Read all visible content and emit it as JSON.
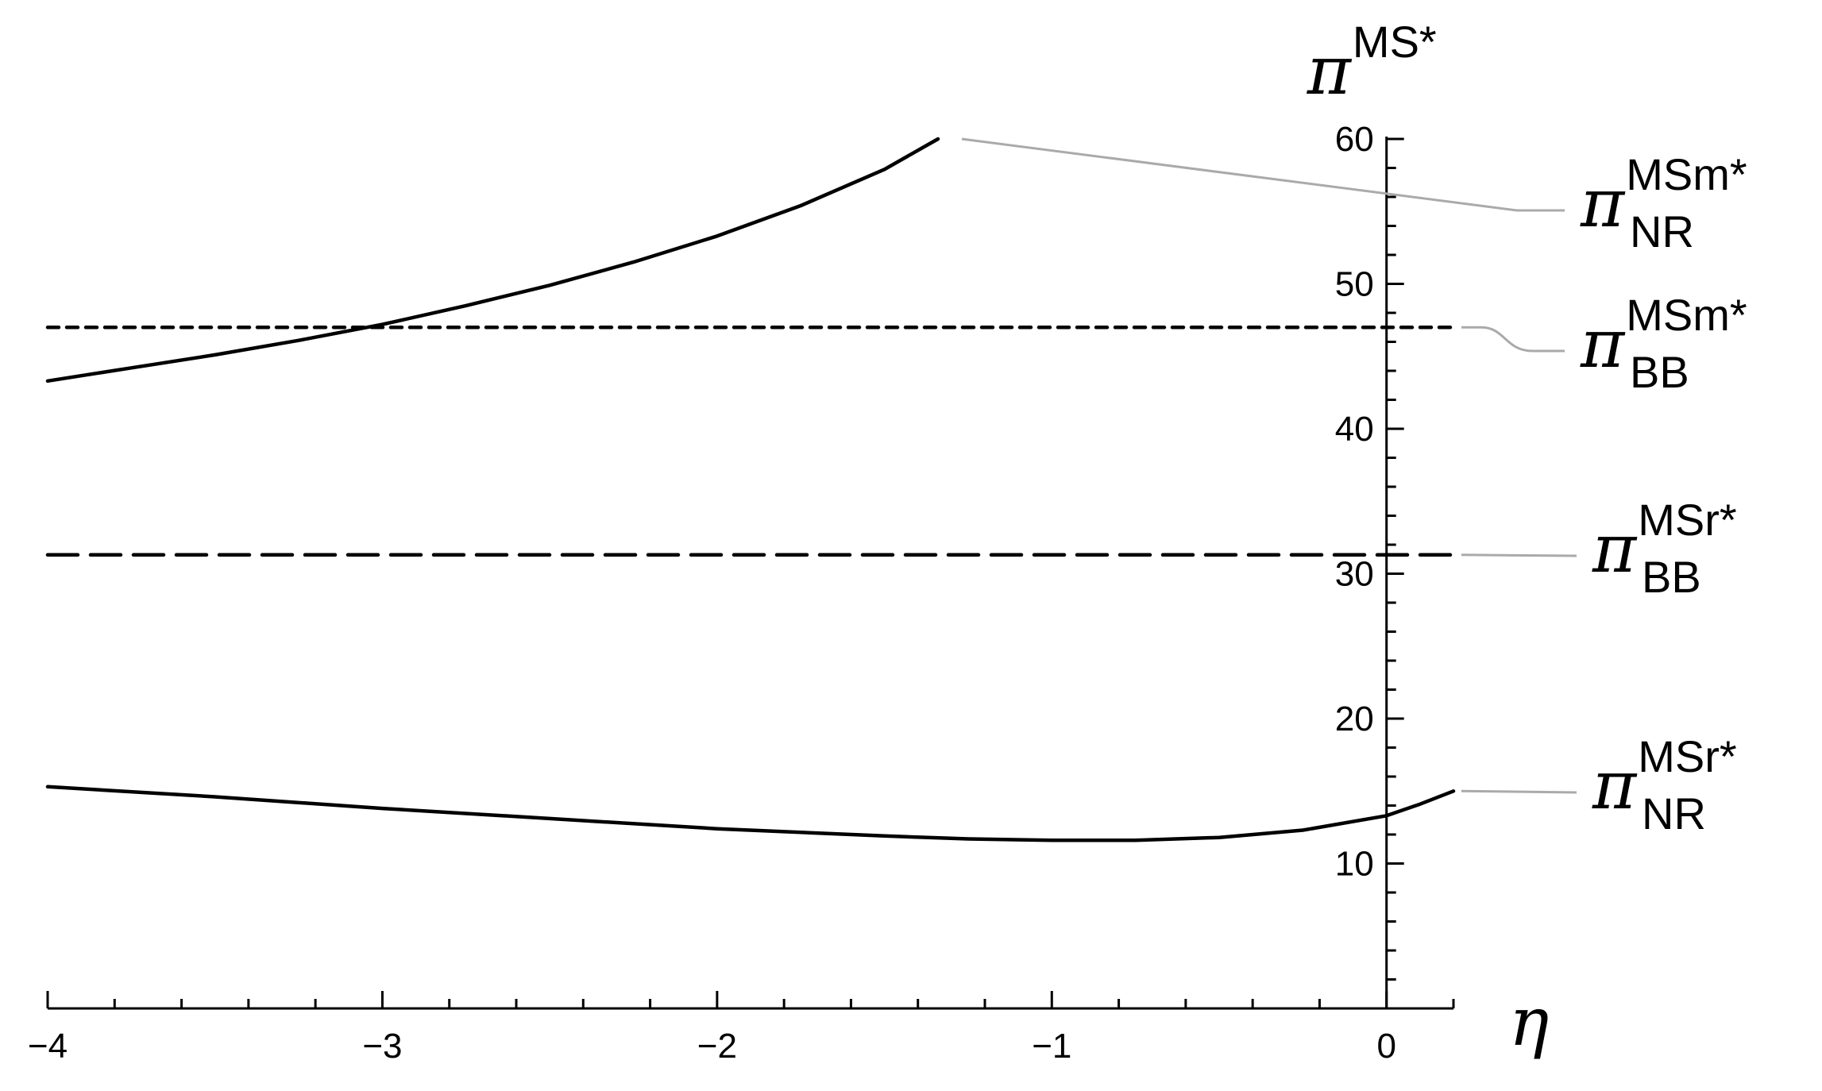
{
  "chart_data": {
    "type": "line",
    "title": "",
    "xlabel": "η",
    "ylabel": {
      "symbol": "π",
      "superscript": "MS*"
    },
    "xlim": [
      -4,
      0.2
    ],
    "ylim": [
      0,
      60
    ],
    "x_ticks": [
      -4,
      -3,
      -2,
      -1,
      0
    ],
    "x_tick_labels": [
      "−4",
      "−3",
      "−2",
      "−1",
      "0"
    ],
    "y_ticks": [
      10,
      20,
      30,
      40,
      50,
      60
    ],
    "y_tick_labels": [
      "10",
      "20",
      "30",
      "40",
      "50",
      "60"
    ],
    "grid": false,
    "legend": "direct labels at right",
    "series": [
      {
        "name": "π_NR^MSm*",
        "label": {
          "symbol": "π",
          "superscript": "MSm*",
          "subscript": "NR"
        },
        "style": "solid",
        "x": [
          -4.0,
          -3.75,
          -3.5,
          -3.25,
          -3.0,
          -2.75,
          -2.5,
          -2.25,
          -2.0,
          -1.75,
          -1.5,
          -1.34
        ],
        "y": [
          43.3,
          44.2,
          45.1,
          46.1,
          47.2,
          48.5,
          49.9,
          51.5,
          53.3,
          55.4,
          57.9,
          60.0
        ]
      },
      {
        "name": "π_BB^MSm*",
        "label": {
          "symbol": "π",
          "superscript": "MSm*",
          "subscript": "BB"
        },
        "style": "dotted-dash",
        "x": [
          -4.0,
          0.2
        ],
        "y": [
          47.0,
          47.0
        ]
      },
      {
        "name": "π_BB^MSr*",
        "label": {
          "symbol": "π",
          "superscript": "MSr*",
          "subscript": "BB"
        },
        "style": "long-dash",
        "x": [
          -4.0,
          0.2
        ],
        "y": [
          31.3,
          31.3
        ]
      },
      {
        "name": "π_NR^MSr*",
        "label": {
          "symbol": "π",
          "superscript": "MSr*",
          "subscript": "NR"
        },
        "style": "solid",
        "x": [
          -4.0,
          -3.5,
          -3.0,
          -2.5,
          -2.0,
          -1.5,
          -1.25,
          -1.0,
          -0.75,
          -0.5,
          -0.25,
          0.0,
          0.1,
          0.2
        ],
        "y": [
          15.3,
          14.6,
          13.8,
          13.1,
          12.4,
          11.9,
          11.7,
          11.6,
          11.6,
          11.8,
          12.3,
          13.3,
          14.1,
          15.0
        ]
      }
    ]
  }
}
